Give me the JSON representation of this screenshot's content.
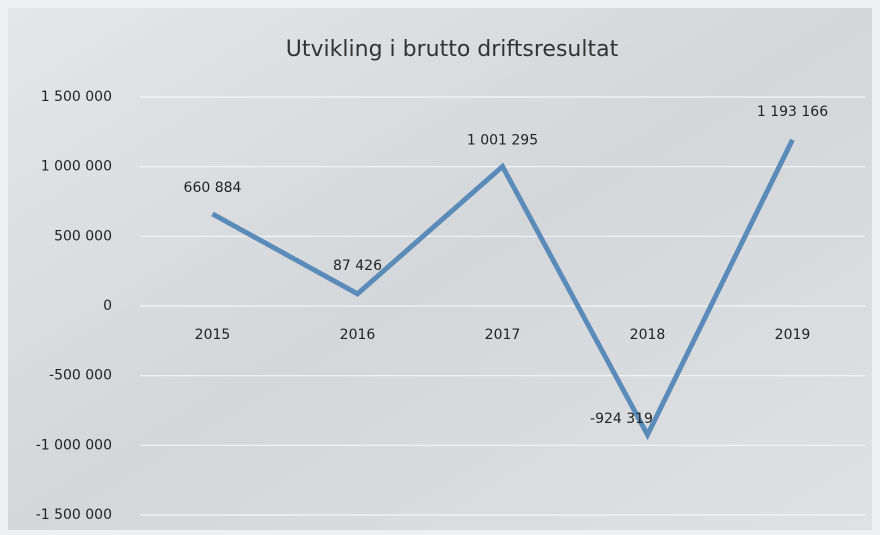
{
  "chart_data": {
    "type": "line",
    "title": "Utvikling i brutto driftsresultat",
    "categories": [
      "2015",
      "2016",
      "2017",
      "2018",
      "2019"
    ],
    "series": [
      {
        "color": "#5b8bb8",
        "values": [
          660884,
          87426,
          1001295,
          -924319,
          1193166
        ],
        "value_labels": [
          "660 884",
          "87 426",
          "1 001 295",
          "-924 319",
          "1 193 166"
        ]
      }
    ],
    "ylim": [
      -1500000,
      1500000
    ],
    "yticks": [
      {
        "value": -1500000,
        "label": "-1 500 000"
      },
      {
        "value": -1000000,
        "label": "-1 000 000"
      },
      {
        "value": -500000,
        "label": "-500 000"
      },
      0,
      {
        "value": 500000,
        "label": "500 000"
      },
      {
        "value": 1000000,
        "label": "1 000 000"
      },
      {
        "value": 1500000,
        "label": "1 500 000"
      }
    ],
    "grid": true
  }
}
